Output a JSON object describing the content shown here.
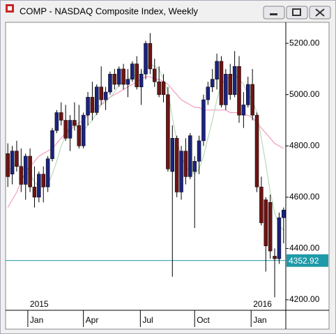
{
  "chart_data": {
    "type": "candlestick",
    "title": "COMP - NASDAQ Composite Index, Weekly",
    "ylim": [
      4159,
      5282
    ],
    "yticks": [
      {
        "value": 4200,
        "label": "4200.00"
      },
      {
        "value": 4400,
        "label": "4400.00"
      },
      {
        "value": 4600,
        "label": "4600.00"
      },
      {
        "value": 4800,
        "label": "4800.00"
      },
      {
        "value": 5000,
        "label": "5000.00"
      },
      {
        "value": 5200,
        "label": "5200.00"
      }
    ],
    "xlim": [
      -0.5,
      62.5
    ],
    "xticks": [
      {
        "value": 4.5,
        "label": "Jan"
      },
      {
        "value": 17,
        "label": "Apr"
      },
      {
        "value": 29.8,
        "label": "Jul"
      },
      {
        "value": 42,
        "label": "Oct"
      },
      {
        "value": 54.7,
        "label": "Jan"
      }
    ],
    "year_labels": [
      {
        "value": 4.5,
        "label": "2015"
      },
      {
        "value": 54.7,
        "label": "2016"
      }
    ],
    "up_color": "#1a237e",
    "down_color": "#6d1414",
    "open": [
      4770,
      4690,
      4780,
      4720,
      4650,
      4760,
      4640,
      4600,
      4690,
      4640,
      4750,
      4860,
      4930,
      4900,
      4830,
      4900,
      4880,
      4800,
      4920,
      4990,
      4930,
      5030,
      4980,
      5010,
      5080,
      5040,
      5100,
      5040,
      5060,
      5120,
      5030,
      5080,
      5200,
      5100,
      5050,
      5050,
      5000,
      4700,
      4830,
      4620,
      4780,
      4680,
      4700,
      4740,
      4820,
      4980,
      5030,
      5060,
      5130,
      4960,
      5080,
      5000,
      5110,
      4920,
      4960,
      5040,
      4920,
      4640,
      4590,
      4580,
      4370,
      4360,
      4520
    ],
    "high": [
      4810,
      4800,
      4820,
      4790,
      4770,
      4790,
      4720,
      4700,
      4720,
      4760,
      4870,
      4940,
      4970,
      4960,
      4920,
      4970,
      4960,
      4930,
      5010,
      5050,
      5040,
      5110,
      5030,
      5090,
      5100,
      5110,
      5120,
      5100,
      5130,
      5150,
      5100,
      5210,
      5240,
      5140,
      5110,
      5080,
      5030,
      4880,
      4840,
      4800,
      4830,
      4850,
      4760,
      4840,
      5000,
      5050,
      5100,
      5160,
      5150,
      5100,
      5120,
      5170,
      5150,
      5010,
      5070,
      5100,
      4930,
      4680,
      4600,
      4610,
      4400,
      4540,
      4560
    ],
    "low": [
      4640,
      4650,
      4700,
      4620,
      4590,
      4620,
      4560,
      4580,
      4580,
      4620,
      4740,
      4850,
      4880,
      4820,
      4780,
      4860,
      4790,
      4790,
      4880,
      4900,
      4920,
      4960,
      4940,
      5000,
      5020,
      5030,
      5020,
      4990,
      5050,
      5020,
      4960,
      5060,
      5080,
      5030,
      4990,
      4970,
      4700,
      4290,
      4600,
      4590,
      4650,
      4670,
      4480,
      4690,
      4800,
      4960,
      5010,
      5020,
      4950,
      4940,
      4980,
      4990,
      4890,
      4870,
      4950,
      4900,
      4620,
      4490,
      4310,
      4360,
      4210,
      4340,
      4420
    ],
    "close": [
      4680,
      4780,
      4720,
      4650,
      4760,
      4640,
      4600,
      4690,
      4640,
      4750,
      4860,
      4930,
      4900,
      4830,
      4900,
      4880,
      4800,
      4920,
      4990,
      4930,
      5030,
      4980,
      5010,
      5080,
      5040,
      5100,
      5040,
      5060,
      5120,
      5030,
      5080,
      5200,
      5100,
      5050,
      5000,
      5000,
      4710,
      4830,
      4620,
      4780,
      4680,
      4840,
      4740,
      4820,
      4980,
      5030,
      5060,
      5130,
      4960,
      5080,
      5000,
      5110,
      4920,
      4960,
      5040,
      4920,
      4640,
      4500,
      4410,
      4390,
      4360,
      4520,
      4550
    ],
    "lines": [
      {
        "color": "#f29cc0",
        "values": [
          4560,
          4590,
          4620,
          4660,
          4700,
          4720,
          4740,
          4760,
          4770,
          4780,
          4790,
          4810,
          4830,
          4850,
          4860,
          4880,
          4890,
          4900,
          4920,
          4940,
          4950,
          4960,
          4980,
          4990,
          5000,
          5010,
          5020,
          5030,
          5040,
          5050,
          5060,
          5070,
          5070,
          5060,
          5060,
          5050,
          5040,
          5020,
          5000,
          4980,
          4970,
          4960,
          4950,
          4950,
          4940,
          4940,
          4940,
          4940,
          4940,
          4940,
          4930,
          4930,
          4930,
          4920,
          4920,
          4910,
          4890,
          4870,
          4850,
          4830,
          4810,
          4800,
          4790
        ]
      },
      {
        "color": "#b9d9b9",
        "values": [
          4700,
          4720,
          4730,
          4720,
          4700,
          4690,
          4660,
          4640,
          4640,
          4650,
          4690,
          4740,
          4800,
          4840,
          4880,
          4880,
          4870,
          4860,
          4880,
          4900,
          4930,
          4960,
          4970,
          4990,
          5010,
          5040,
          5050,
          5060,
          5070,
          5080,
          5080,
          5100,
          5120,
          5110,
          5100,
          5060,
          5010,
          4910,
          4820,
          4760,
          4720,
          4700,
          4690,
          4710,
          4760,
          4830,
          4900,
          4980,
          5040,
          5060,
          5070,
          5080,
          5060,
          5040,
          5000,
          4980,
          4930,
          4830,
          4730,
          4620,
          4540,
          4490,
          4470
        ]
      }
    ],
    "price_line": {
      "value": 4352.92,
      "label": "4352.92",
      "color": "#1f9aa8"
    }
  }
}
